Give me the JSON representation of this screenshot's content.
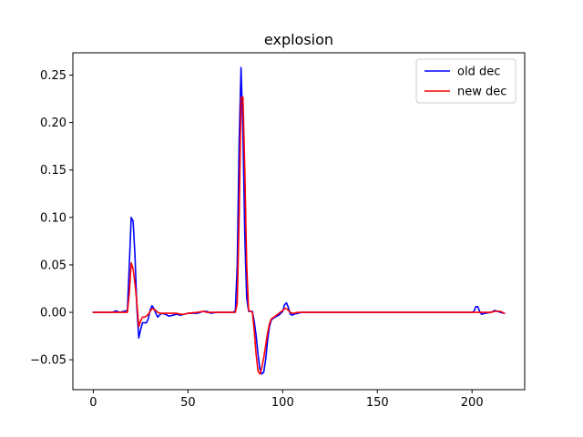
{
  "chart_data": {
    "type": "line",
    "title": "explosion",
    "xlabel": "",
    "ylabel": "",
    "xlim": [
      -10.8,
      227.8
    ],
    "ylim": [
      -0.0815,
      0.2735
    ],
    "xticks": [
      0,
      50,
      100,
      150,
      200
    ],
    "xtick_labels": [
      "0",
      "50",
      "100",
      "150",
      "200"
    ],
    "yticks": [
      -0.05,
      0.0,
      0.05,
      0.1,
      0.15,
      0.2,
      0.25
    ],
    "ytick_labels": [
      "−0.05",
      "0.00",
      "0.05",
      "0.10",
      "0.15",
      "0.20",
      "0.25"
    ],
    "grid": false,
    "legend_position": "top-right",
    "series": [
      {
        "name": "old dec",
        "color": "#0000ff",
        "points": [
          [
            0,
            0
          ],
          [
            5,
            0
          ],
          [
            10,
            0
          ],
          [
            12,
            0.0015
          ],
          [
            14,
            0
          ],
          [
            18,
            0.002
          ],
          [
            19,
            0.05
          ],
          [
            20,
            0.1
          ],
          [
            21,
            0.096
          ],
          [
            22,
            0.06
          ],
          [
            23,
            0.005
          ],
          [
            24,
            -0.027
          ],
          [
            25,
            -0.018
          ],
          [
            26,
            -0.011
          ],
          [
            27,
            -0.011
          ],
          [
            28,
            -0.011
          ],
          [
            29,
            -0.007
          ],
          [
            30,
            0.002
          ],
          [
            31,
            0.007
          ],
          [
            32,
            0.004
          ],
          [
            33,
            -0.001
          ],
          [
            34,
            -0.005
          ],
          [
            35,
            -0.003
          ],
          [
            36,
            -0.001
          ],
          [
            38,
            -0.002
          ],
          [
            40,
            -0.004
          ],
          [
            42,
            -0.003
          ],
          [
            44,
            -0.002
          ],
          [
            46,
            -0.003
          ],
          [
            48,
            -0.002
          ],
          [
            50,
            -0.001
          ],
          [
            55,
            -0.001
          ],
          [
            58,
            0.001
          ],
          [
            60,
            0.001
          ],
          [
            62,
            -0.001
          ],
          [
            65,
            0
          ],
          [
            70,
            0
          ],
          [
            74,
            0
          ],
          [
            75,
            0.002
          ],
          [
            76,
            0.05
          ],
          [
            77,
            0.18
          ],
          [
            78,
            0.258
          ],
          [
            79,
            0.19
          ],
          [
            80,
            0.08
          ],
          [
            81,
            0.015
          ],
          [
            82,
            0.001
          ],
          [
            83,
            0.001
          ],
          [
            84,
            0.001
          ],
          [
            85,
            -0.01
          ],
          [
            86,
            -0.025
          ],
          [
            87,
            -0.045
          ],
          [
            88,
            -0.06
          ],
          [
            89,
            -0.065
          ],
          [
            90,
            -0.063
          ],
          [
            91,
            -0.05
          ],
          [
            92,
            -0.03
          ],
          [
            93,
            -0.015
          ],
          [
            94,
            -0.008
          ],
          [
            96,
            -0.005
          ],
          [
            98,
            -0.003
          ],
          [
            100,
            0.001
          ],
          [
            101,
            0.008
          ],
          [
            102,
            0.01
          ],
          [
            103,
            0.005
          ],
          [
            104,
            -0.002
          ],
          [
            105,
            -0.003
          ],
          [
            106,
            -0.002
          ],
          [
            108,
            -0.001
          ],
          [
            110,
            0
          ],
          [
            120,
            0
          ],
          [
            150,
            0
          ],
          [
            180,
            0
          ],
          [
            200,
            0
          ],
          [
            201,
            0.001
          ],
          [
            202,
            0.006
          ],
          [
            203,
            0.006
          ],
          [
            204,
            0.001
          ],
          [
            205,
            -0.002
          ],
          [
            207,
            -0.001
          ],
          [
            210,
            0
          ],
          [
            212,
            0.002
          ],
          [
            215,
            0
          ],
          [
            217,
            -0.001
          ]
        ]
      },
      {
        "name": "new dec",
        "color": "#ff0000",
        "points": [
          [
            0,
            0
          ],
          [
            5,
            0
          ],
          [
            10,
            0
          ],
          [
            12,
            0
          ],
          [
            14,
            0
          ],
          [
            18,
            0
          ],
          [
            19,
            0.02
          ],
          [
            20,
            0.052
          ],
          [
            21,
            0.046
          ],
          [
            22,
            0.03
          ],
          [
            23,
            0.01
          ],
          [
            24,
            -0.015
          ],
          [
            25,
            -0.009
          ],
          [
            26,
            -0.005
          ],
          [
            27,
            -0.005
          ],
          [
            28,
            -0.004
          ],
          [
            29,
            -0.002
          ],
          [
            30,
            0.001
          ],
          [
            31,
            0.004
          ],
          [
            32,
            0.003
          ],
          [
            33,
            0.002
          ],
          [
            34,
            0
          ],
          [
            35,
            -0.001
          ],
          [
            36,
            -0.001
          ],
          [
            38,
            -0.001
          ],
          [
            40,
            -0.001
          ],
          [
            42,
            -0.001
          ],
          [
            44,
            -0.001
          ],
          [
            46,
            -0.002
          ],
          [
            48,
            -0.002
          ],
          [
            50,
            -0.001
          ],
          [
            55,
            0
          ],
          [
            58,
            0.001
          ],
          [
            60,
            0
          ],
          [
            62,
            0
          ],
          [
            65,
            0
          ],
          [
            70,
            0
          ],
          [
            74,
            0
          ],
          [
            75,
            0
          ],
          [
            76,
            0.01
          ],
          [
            77,
            0.1
          ],
          [
            78,
            0.226
          ],
          [
            79,
            0.227
          ],
          [
            80,
            0.15
          ],
          [
            81,
            0.05
          ],
          [
            82,
            0.002
          ],
          [
            83,
            0.001
          ],
          [
            84,
            0
          ],
          [
            85,
            -0.02
          ],
          [
            86,
            -0.045
          ],
          [
            87,
            -0.062
          ],
          [
            88,
            -0.065
          ],
          [
            89,
            -0.058
          ],
          [
            90,
            -0.048
          ],
          [
            91,
            -0.035
          ],
          [
            92,
            -0.022
          ],
          [
            93,
            -0.012
          ],
          [
            94,
            -0.007
          ],
          [
            96,
            -0.004
          ],
          [
            98,
            -0.001
          ],
          [
            100,
            0.002
          ],
          [
            101,
            0.004
          ],
          [
            102,
            0.004
          ],
          [
            103,
            0.002
          ],
          [
            104,
            0
          ],
          [
            105,
            -0.001
          ],
          [
            106,
            -0.001
          ],
          [
            108,
            0
          ],
          [
            110,
            0
          ],
          [
            120,
            0
          ],
          [
            150,
            0
          ],
          [
            180,
            0
          ],
          [
            200,
            0
          ],
          [
            201,
            0
          ],
          [
            202,
            0
          ],
          [
            203,
            0
          ],
          [
            204,
            0
          ],
          [
            205,
            0
          ],
          [
            207,
            0
          ],
          [
            210,
            0
          ],
          [
            212,
            0.001
          ],
          [
            215,
            0.001
          ],
          [
            217,
            -0.001
          ]
        ]
      }
    ]
  }
}
